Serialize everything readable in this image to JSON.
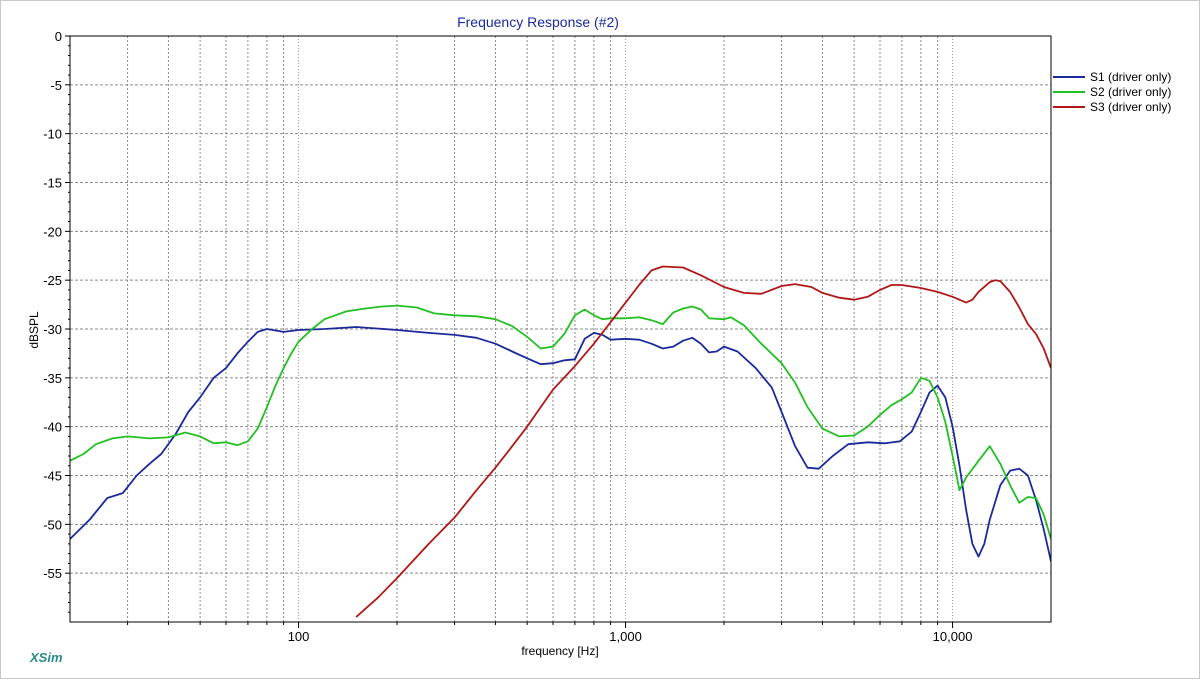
{
  "app": {
    "brand": "XSim"
  },
  "chart_data": {
    "type": "line",
    "title": "Frequency Response (#2)",
    "xlabel": "frequency [Hz]",
    "ylabel": "dBSPL",
    "xscale": "log",
    "xlim": [
      20,
      20000
    ],
    "ylim": [
      -60,
      0
    ],
    "grid": true,
    "legend_position": "top-right",
    "x_tick_labels": [
      {
        "value": 100,
        "label": "100"
      },
      {
        "value": 1000,
        "label": "1,000"
      },
      {
        "value": 10000,
        "label": "10,000"
      }
    ],
    "y_ticks": [
      0,
      -5,
      -10,
      -15,
      -20,
      -25,
      -30,
      -35,
      -40,
      -45,
      -50,
      -55
    ],
    "series": [
      {
        "name": "S1 (driver only)",
        "color": "#1a2a9a",
        "points": [
          [
            20,
            -51.5
          ],
          [
            23,
            -49.5
          ],
          [
            26,
            -47.3
          ],
          [
            29,
            -46.8
          ],
          [
            32,
            -45.0
          ],
          [
            35,
            -43.8
          ],
          [
            38,
            -42.8
          ],
          [
            42,
            -40.8
          ],
          [
            46,
            -38.5
          ],
          [
            50,
            -37.0
          ],
          [
            55,
            -35.0
          ],
          [
            60,
            -34.0
          ],
          [
            65,
            -32.5
          ],
          [
            70,
            -31.3
          ],
          [
            75,
            -30.3
          ],
          [
            80,
            -30.0
          ],
          [
            90,
            -30.3
          ],
          [
            100,
            -30.1
          ],
          [
            120,
            -30.0
          ],
          [
            150,
            -29.8
          ],
          [
            200,
            -30.1
          ],
          [
            250,
            -30.4
          ],
          [
            300,
            -30.6
          ],
          [
            350,
            -30.9
          ],
          [
            400,
            -31.5
          ],
          [
            450,
            -32.3
          ],
          [
            500,
            -33.0
          ],
          [
            550,
            -33.6
          ],
          [
            600,
            -33.5
          ],
          [
            650,
            -33.2
          ],
          [
            700,
            -33.1
          ],
          [
            750,
            -31.0
          ],
          [
            800,
            -30.4
          ],
          [
            850,
            -30.6
          ],
          [
            900,
            -31.1
          ],
          [
            1000,
            -31.0
          ],
          [
            1100,
            -31.1
          ],
          [
            1200,
            -31.5
          ],
          [
            1300,
            -32.0
          ],
          [
            1400,
            -31.8
          ],
          [
            1500,
            -31.2
          ],
          [
            1600,
            -30.9
          ],
          [
            1700,
            -31.5
          ],
          [
            1800,
            -32.4
          ],
          [
            1900,
            -32.3
          ],
          [
            2000,
            -31.8
          ],
          [
            2200,
            -32.3
          ],
          [
            2500,
            -34.0
          ],
          [
            2800,
            -36.0
          ],
          [
            3000,
            -38.5
          ],
          [
            3300,
            -42.0
          ],
          [
            3600,
            -44.2
          ],
          [
            3900,
            -44.3
          ],
          [
            4300,
            -43.0
          ],
          [
            4800,
            -41.8
          ],
          [
            5500,
            -41.6
          ],
          [
            6200,
            -41.7
          ],
          [
            6900,
            -41.5
          ],
          [
            7500,
            -40.5
          ],
          [
            8000,
            -38.5
          ],
          [
            8500,
            -36.5
          ],
          [
            9000,
            -35.8
          ],
          [
            9500,
            -37.0
          ],
          [
            10000,
            -40.0
          ],
          [
            10500,
            -44.0
          ],
          [
            11000,
            -48.5
          ],
          [
            11500,
            -52.0
          ],
          [
            12000,
            -53.3
          ],
          [
            12500,
            -52.0
          ],
          [
            13000,
            -49.5
          ],
          [
            14000,
            -46.0
          ],
          [
            15000,
            -44.5
          ],
          [
            16000,
            -44.3
          ],
          [
            17000,
            -45.0
          ],
          [
            18000,
            -47.5
          ],
          [
            19000,
            -50.5
          ],
          [
            20000,
            -53.8
          ]
        ]
      },
      {
        "name": "S2 (driver only)",
        "color": "#22c022",
        "points": [
          [
            20,
            -43.5
          ],
          [
            22,
            -42.8
          ],
          [
            24,
            -41.8
          ],
          [
            27,
            -41.2
          ],
          [
            30,
            -41.0
          ],
          [
            35,
            -41.2
          ],
          [
            40,
            -41.1
          ],
          [
            45,
            -40.6
          ],
          [
            50,
            -41.0
          ],
          [
            55,
            -41.7
          ],
          [
            60,
            -41.6
          ],
          [
            65,
            -41.9
          ],
          [
            70,
            -41.5
          ],
          [
            75,
            -40.2
          ],
          [
            80,
            -38.0
          ],
          [
            85,
            -35.8
          ],
          [
            90,
            -34.0
          ],
          [
            95,
            -32.5
          ],
          [
            100,
            -31.3
          ],
          [
            110,
            -30.0
          ],
          [
            120,
            -29.0
          ],
          [
            140,
            -28.2
          ],
          [
            160,
            -27.9
          ],
          [
            180,
            -27.7
          ],
          [
            200,
            -27.6
          ],
          [
            230,
            -27.8
          ],
          [
            260,
            -28.4
          ],
          [
            300,
            -28.6
          ],
          [
            350,
            -28.7
          ],
          [
            400,
            -29.0
          ],
          [
            450,
            -29.7
          ],
          [
            500,
            -30.8
          ],
          [
            550,
            -32.0
          ],
          [
            600,
            -31.8
          ],
          [
            650,
            -30.5
          ],
          [
            700,
            -28.6
          ],
          [
            750,
            -28.0
          ],
          [
            800,
            -28.6
          ],
          [
            850,
            -29.0
          ],
          [
            900,
            -28.9
          ],
          [
            1000,
            -28.9
          ],
          [
            1100,
            -28.8
          ],
          [
            1200,
            -29.1
          ],
          [
            1300,
            -29.5
          ],
          [
            1400,
            -28.3
          ],
          [
            1500,
            -27.9
          ],
          [
            1600,
            -27.7
          ],
          [
            1700,
            -28.0
          ],
          [
            1800,
            -28.9
          ],
          [
            2000,
            -29.0
          ],
          [
            2100,
            -28.8
          ],
          [
            2300,
            -29.6
          ],
          [
            2600,
            -31.5
          ],
          [
            3000,
            -33.5
          ],
          [
            3300,
            -35.5
          ],
          [
            3600,
            -38.0
          ],
          [
            4000,
            -40.2
          ],
          [
            4500,
            -41.0
          ],
          [
            5000,
            -40.9
          ],
          [
            5500,
            -40.0
          ],
          [
            6000,
            -38.8
          ],
          [
            6500,
            -37.8
          ],
          [
            7000,
            -37.2
          ],
          [
            7500,
            -36.5
          ],
          [
            8000,
            -35.0
          ],
          [
            8500,
            -35.3
          ],
          [
            9000,
            -37.0
          ],
          [
            9500,
            -39.5
          ],
          [
            10000,
            -43.0
          ],
          [
            10500,
            -46.5
          ],
          [
            11000,
            -45.2
          ],
          [
            12000,
            -43.5
          ],
          [
            13000,
            -42.0
          ],
          [
            14000,
            -43.8
          ],
          [
            15000,
            -46.0
          ],
          [
            16000,
            -47.8
          ],
          [
            17000,
            -47.2
          ],
          [
            18000,
            -47.3
          ],
          [
            19000,
            -49.0
          ],
          [
            20000,
            -51.5
          ]
        ]
      },
      {
        "name": "S3 (driver only)",
        "color": "#b01818",
        "points": [
          [
            150,
            -59.5
          ],
          [
            175,
            -57.5
          ],
          [
            200,
            -55.5
          ],
          [
            250,
            -52.0
          ],
          [
            300,
            -49.3
          ],
          [
            350,
            -46.5
          ],
          [
            400,
            -44.2
          ],
          [
            450,
            -42.0
          ],
          [
            500,
            -40.0
          ],
          [
            550,
            -38.0
          ],
          [
            600,
            -36.2
          ],
          [
            700,
            -33.8
          ],
          [
            800,
            -31.5
          ],
          [
            900,
            -29.3
          ],
          [
            1000,
            -27.3
          ],
          [
            1100,
            -25.5
          ],
          [
            1200,
            -24.0
          ],
          [
            1300,
            -23.6
          ],
          [
            1500,
            -23.7
          ],
          [
            1700,
            -24.5
          ],
          [
            2000,
            -25.7
          ],
          [
            2300,
            -26.3
          ],
          [
            2600,
            -26.4
          ],
          [
            3000,
            -25.6
          ],
          [
            3300,
            -25.4
          ],
          [
            3700,
            -25.7
          ],
          [
            4000,
            -26.3
          ],
          [
            4500,
            -26.8
          ],
          [
            5000,
            -27.0
          ],
          [
            5500,
            -26.7
          ],
          [
            6000,
            -26.0
          ],
          [
            6500,
            -25.5
          ],
          [
            7000,
            -25.5
          ],
          [
            8000,
            -25.8
          ],
          [
            9000,
            -26.2
          ],
          [
            10000,
            -26.7
          ],
          [
            11000,
            -27.3
          ],
          [
            11500,
            -27.0
          ],
          [
            12000,
            -26.2
          ],
          [
            13000,
            -25.2
          ],
          [
            13500,
            -25.0
          ],
          [
            14000,
            -25.1
          ],
          [
            15000,
            -26.2
          ],
          [
            16000,
            -27.8
          ],
          [
            17000,
            -29.5
          ],
          [
            18000,
            -30.5
          ],
          [
            19000,
            -32.0
          ],
          [
            20000,
            -34.0
          ]
        ]
      }
    ]
  }
}
